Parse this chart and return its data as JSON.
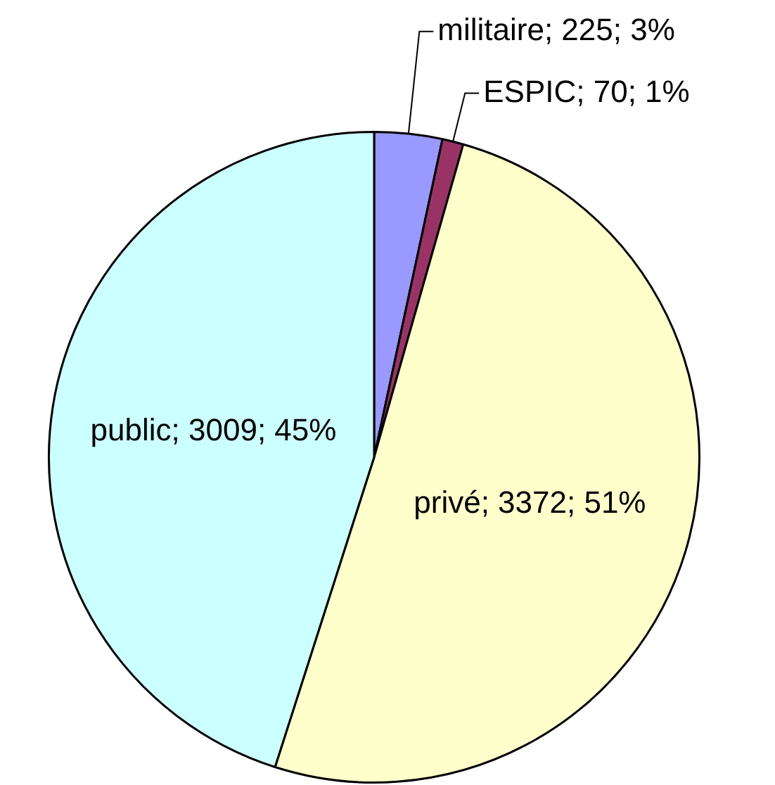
{
  "chart_data": {
    "type": "pie",
    "categories": [
      "militaire",
      "ESPIC",
      "privé",
      "public"
    ],
    "values": [
      225,
      70,
      3372,
      3009
    ],
    "colors": [
      "#9999ff",
      "#993366",
      "#ffffcc",
      "#ccffff"
    ],
    "value_labels": [
      "225; 3%",
      "70; 1%",
      "3372; 51%",
      "3009; 45%"
    ],
    "legend": false
  }
}
